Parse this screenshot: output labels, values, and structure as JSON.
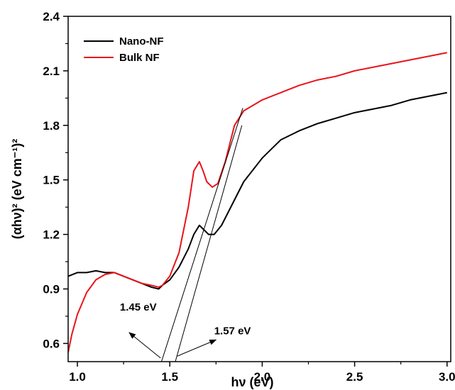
{
  "chart_data": {
    "type": "line",
    "xlabel": "hν (eV)",
    "ylabel": "(αhν)² (eV cm⁻¹)²",
    "xlim": [
      0.95,
      3.02
    ],
    "ylim": [
      0.5,
      2.4
    ],
    "x_ticks": [
      1.0,
      1.5,
      2.0,
      2.5,
      3.0
    ],
    "x_tick_labels": [
      "1.0",
      "1.5",
      "2.0",
      "2.5",
      "3.0"
    ],
    "y_ticks": [
      0.6,
      0.9,
      1.2,
      1.5,
      1.8,
      2.1,
      2.4
    ],
    "y_tick_labels": [
      "0.6",
      "0.9",
      "1.2",
      "1.5",
      "1.8",
      "2.1",
      "2.4"
    ],
    "grid": false,
    "legend_position": "top-left",
    "series": [
      {
        "name": "Nano-NF",
        "color": "#000000",
        "x": [
          0.95,
          1.0,
          1.05,
          1.1,
          1.15,
          1.2,
          1.25,
          1.3,
          1.35,
          1.4,
          1.44,
          1.46,
          1.5,
          1.55,
          1.6,
          1.63,
          1.66,
          1.68,
          1.71,
          1.74,
          1.78,
          1.85,
          1.9,
          2.0,
          2.1,
          2.2,
          2.3,
          2.4,
          2.5,
          2.6,
          2.7,
          2.8,
          2.9,
          3.0
        ],
        "y": [
          0.97,
          0.99,
          0.99,
          1.0,
          0.99,
          0.99,
          0.97,
          0.95,
          0.93,
          0.91,
          0.9,
          0.92,
          0.95,
          1.02,
          1.12,
          1.2,
          1.25,
          1.23,
          1.2,
          1.2,
          1.25,
          1.39,
          1.49,
          1.62,
          1.72,
          1.77,
          1.81,
          1.84,
          1.87,
          1.89,
          1.91,
          1.94,
          1.96,
          1.98
        ]
      },
      {
        "name": "Bulk NF",
        "color": "#e8141a",
        "x": [
          0.95,
          0.97,
          1.0,
          1.05,
          1.1,
          1.15,
          1.2,
          1.25,
          1.3,
          1.35,
          1.4,
          1.44,
          1.46,
          1.5,
          1.55,
          1.6,
          1.63,
          1.66,
          1.68,
          1.7,
          1.73,
          1.76,
          1.8,
          1.85,
          1.9,
          1.95,
          2.0,
          2.1,
          2.2,
          2.3,
          2.4,
          2.5,
          2.6,
          2.7,
          2.8,
          2.9,
          3.0
        ],
        "y": [
          0.55,
          0.65,
          0.76,
          0.88,
          0.95,
          0.98,
          0.99,
          0.97,
          0.95,
          0.93,
          0.92,
          0.91,
          0.92,
          0.97,
          1.1,
          1.35,
          1.55,
          1.6,
          1.55,
          1.49,
          1.46,
          1.48,
          1.6,
          1.8,
          1.88,
          1.91,
          1.94,
          1.98,
          2.02,
          2.05,
          2.07,
          2.1,
          2.12,
          2.14,
          2.16,
          2.18,
          2.2
        ]
      }
    ],
    "tangent_lines": [
      {
        "x": [
          1.455,
          1.895
        ],
        "y": [
          0.5,
          1.895
        ]
      },
      {
        "x": [
          1.53,
          1.89
        ],
        "y": [
          0.5,
          1.8
        ]
      }
    ],
    "annotations": [
      {
        "text": "1.45 eV",
        "text_x": 1.23,
        "text_y": 0.78,
        "from": [
          1.45,
          0.52
        ],
        "to": [
          1.28,
          0.66
        ]
      },
      {
        "text": "1.57 eV",
        "text_x": 1.74,
        "text_y": 0.65,
        "from": [
          1.54,
          0.53
        ],
        "to": [
          1.75,
          0.62
        ]
      }
    ]
  }
}
